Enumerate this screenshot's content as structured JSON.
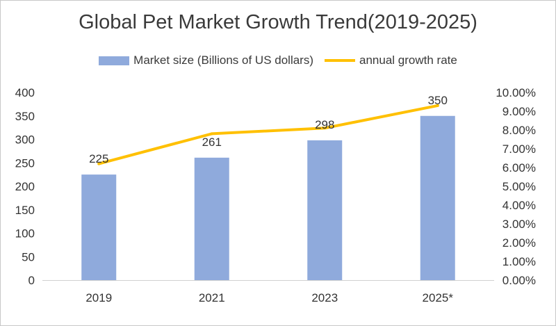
{
  "chart_data": {
    "type": "bar",
    "title": "Global Pet Market Growth Trend(2019-2025)",
    "categories": [
      "2019",
      "2021",
      "2023",
      "2025*"
    ],
    "series": [
      {
        "name": "Market size (Billions of US dollars)",
        "type": "bar",
        "axis": "left",
        "color": "#8faadc",
        "values": [
          225,
          261,
          298,
          350
        ],
        "data_labels": [
          "225",
          "261",
          "298",
          "350"
        ]
      },
      {
        "name": "annual growth rate",
        "type": "line",
        "axis": "right",
        "color": "#ffc000",
        "values": [
          6.2,
          7.8,
          8.1,
          9.3
        ]
      }
    ],
    "y_left": {
      "lim": [
        0,
        400
      ],
      "ticks": [
        0,
        50,
        100,
        150,
        200,
        250,
        300,
        350,
        400
      ],
      "tick_labels": [
        "0",
        "50",
        "100",
        "150",
        "200",
        "250",
        "300",
        "350",
        "400"
      ]
    },
    "y_right": {
      "lim": [
        0,
        10
      ],
      "ticks": [
        0,
        1,
        2,
        3,
        4,
        5,
        6,
        7,
        8,
        9,
        10
      ],
      "tick_labels": [
        "0.00%",
        "1.00%",
        "2.00%",
        "3.00%",
        "4.00%",
        "5.00%",
        "6.00%",
        "7.00%",
        "8.00%",
        "9.00%",
        "10.00%"
      ]
    },
    "xlabel": "",
    "ylabel": "",
    "grid": false,
    "legend_position": "top"
  }
}
